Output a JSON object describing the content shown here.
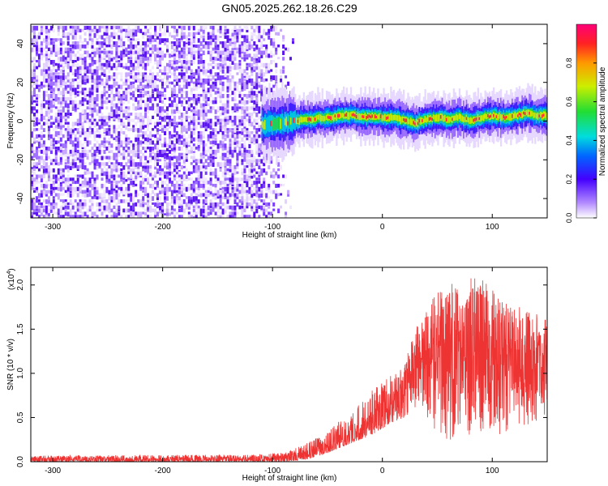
{
  "figure": {
    "title": "GN05.2025.262.18.26.C29"
  },
  "chart_data": [
    {
      "type": "heatmap",
      "name": "spectrogram",
      "xlabel": "Height of straight line (km)",
      "ylabel": "Frequency (Hz)",
      "xlim": [
        -320,
        150
      ],
      "ylim": [
        -50,
        50
      ],
      "xticks": [
        -300,
        -200,
        -100,
        0,
        100
      ],
      "yticks": [
        -40,
        -20,
        0,
        20,
        40
      ],
      "noise_region": [
        -320,
        -80
      ],
      "signal_track": {
        "x": [
          -110,
          -90,
          -70,
          -50,
          -30,
          -10,
          0,
          10,
          20,
          30,
          40,
          50,
          60,
          70,
          80,
          90,
          100,
          110,
          120,
          130,
          140,
          150
        ],
        "freq": [
          -2,
          -1,
          1,
          2,
          3,
          2,
          2,
          2,
          0,
          -1,
          1,
          2,
          1,
          2,
          0,
          2,
          3,
          2,
          3,
          4,
          3,
          3
        ]
      },
      "colorbar": {
        "label": "Normalized spectral amplitude",
        "range": [
          0,
          1
        ],
        "ticks": [
          "0.0",
          "0.2",
          "0.4",
          "0.6",
          "0.8"
        ]
      }
    },
    {
      "type": "line",
      "name": "snr",
      "xlabel": "Height of straight line (km)",
      "ylabel": "SNR (10 * v/v)",
      "multiplier": "(x10",
      "multiplier_exp": "4",
      "multiplier_close": ")",
      "xlim": [
        -320,
        150
      ],
      "ylim": [
        0,
        2.2
      ],
      "xticks": [
        -300,
        -200,
        -100,
        0,
        100
      ],
      "yticks": [
        "0.0",
        "0.5",
        "1.0",
        "1.5",
        "2.0"
      ],
      "color": "#ee3333",
      "envelope": {
        "x": [
          -320,
          -120,
          -90,
          -70,
          -50,
          -30,
          -10,
          10,
          20,
          30,
          50,
          70,
          90,
          110,
          130,
          150
        ],
        "low": [
          0.0,
          0.0,
          0.0,
          0.02,
          0.1,
          0.2,
          0.3,
          0.45,
          0.5,
          0.6,
          0.3,
          0.2,
          0.3,
          0.3,
          0.4,
          0.5
        ],
        "high": [
          0.07,
          0.08,
          0.1,
          0.2,
          0.35,
          0.55,
          0.8,
          1.0,
          1.1,
          1.5,
          1.95,
          2.05,
          2.1,
          1.85,
          1.75,
          1.6
        ]
      }
    }
  ]
}
